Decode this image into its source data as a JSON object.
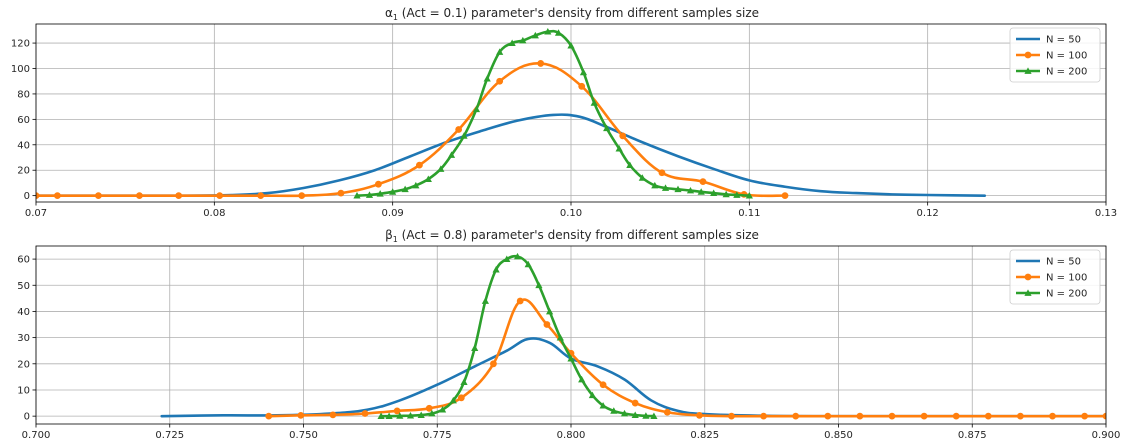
{
  "colors": {
    "n50": "#1f77b4",
    "n100": "#ff7f0e",
    "n200": "#2ca02c",
    "grid": "#b0b0b0",
    "axis": "#000000"
  },
  "chart_data": [
    {
      "type": "line",
      "title_prefix": "α",
      "title_sub": "1",
      "title_rest": " (Act = 0.1) parameter's density from different samples size",
      "xlim": [
        0.07,
        0.13
      ],
      "ylim": [
        -5,
        135
      ],
      "xticks": [
        0.07,
        0.08,
        0.09,
        0.1,
        0.11,
        0.12,
        0.13
      ],
      "xtick_labels": [
        "0.07",
        "0.08",
        "0.09",
        "0.10",
        "0.11",
        "0.12",
        "0.13"
      ],
      "yticks": [
        0,
        20,
        40,
        60,
        80,
        100,
        120
      ],
      "ytick_labels": [
        "0",
        "20",
        "40",
        "60",
        "80",
        "100",
        "120"
      ],
      "grid": true,
      "legend_position": "top-right",
      "legend": [
        "N = 50",
        "N = 100",
        "N = 200"
      ],
      "series": [
        {
          "name": "N = 50",
          "marker": "none",
          "color_key": "n50",
          "x": [
            0.07,
            0.078,
            0.081,
            0.083,
            0.085,
            0.087,
            0.089,
            0.091,
            0.093,
            0.095,
            0.097,
            0.099,
            0.1005,
            0.102,
            0.104,
            0.106,
            0.108,
            0.11,
            0.112,
            0.114,
            0.116,
            0.118,
            0.12,
            0.1232
          ],
          "y": [
            0,
            0,
            0.5,
            2,
            6,
            12,
            20,
            31,
            42,
            51,
            59,
            63.5,
            62,
            54,
            42,
            31,
            21,
            12,
            7,
            3.5,
            2,
            1,
            0.5,
            0
          ]
        },
        {
          "name": "N = 100",
          "marker": "circle",
          "color_key": "n100",
          "x": [
            0.07,
            0.0712,
            0.0735,
            0.0758,
            0.078,
            0.0803,
            0.0826,
            0.0849,
            0.0871,
            0.0892,
            0.0915,
            0.0937,
            0.096,
            0.0983,
            0.1006,
            0.1029,
            0.1051,
            0.1074,
            0.1097,
            0.112
          ],
          "y": [
            0,
            0,
            0,
            0,
            0,
            0,
            0,
            0,
            2,
            9,
            24,
            52,
            90,
            104,
            86,
            47,
            18,
            11,
            1,
            0
          ]
        },
        {
          "name": "N = 200",
          "marker": "triangle",
          "color_key": "n200",
          "x": [
            0.088,
            0.0887,
            0.0893,
            0.09,
            0.0907,
            0.0913,
            0.092,
            0.0927,
            0.0933,
            0.094,
            0.0947,
            0.0953,
            0.096,
            0.0967,
            0.0973,
            0.098,
            0.0987,
            0.0993,
            0.1,
            0.1007,
            0.1013,
            0.102,
            0.1027,
            0.1033,
            0.104,
            0.1047,
            0.1053,
            0.106,
            0.1067,
            0.1073,
            0.108,
            0.1087,
            0.1093,
            0.11
          ],
          "y": [
            0,
            0.5,
            1.5,
            3,
            5,
            8,
            13,
            21,
            32,
            47,
            68,
            92,
            113,
            120,
            122,
            126,
            129,
            128,
            118,
            97,
            73,
            53,
            37,
            24,
            14,
            8,
            6,
            5,
            4,
            3,
            2,
            1,
            0.5,
            0
          ]
        }
      ]
    },
    {
      "type": "line",
      "title_prefix": "β",
      "title_sub": "1",
      "title_rest": " (Act = 0.8) parameter's density from different samples size",
      "xlim": [
        0.7,
        0.9
      ],
      "ylim": [
        -3,
        65
      ],
      "xticks": [
        0.7,
        0.725,
        0.75,
        0.775,
        0.8,
        0.825,
        0.85,
        0.875,
        0.9
      ],
      "xtick_labels": [
        "0.700",
        "0.725",
        "0.750",
        "0.775",
        "0.800",
        "0.825",
        "0.850",
        "0.875",
        "0.900"
      ],
      "yticks": [
        0,
        10,
        20,
        30,
        40,
        50,
        60
      ],
      "ytick_labels": [
        "0",
        "10",
        "20",
        "30",
        "40",
        "50",
        "60"
      ],
      "grid": true,
      "legend_position": "top-right",
      "legend": [
        "N = 50",
        "N = 100",
        "N = 200"
      ],
      "series": [
        {
          "name": "N = 50",
          "marker": "none",
          "color_key": "n50",
          "x": [
            0.7235,
            0.735,
            0.745,
            0.755,
            0.762,
            0.768,
            0.775,
            0.782,
            0.788,
            0.792,
            0.796,
            0.8,
            0.805,
            0.81,
            0.815,
            0.82,
            0.825,
            0.835,
            0.85,
            0.9
          ],
          "y": [
            0,
            0.3,
            0.3,
            1,
            2.5,
            6,
            12,
            19,
            25,
            29.5,
            28,
            22,
            19,
            14,
            6,
            2,
            0.8,
            0.2,
            0,
            0
          ]
        },
        {
          "name": "N = 100",
          "marker": "circle",
          "color_key": "n100",
          "x": [
            0.7435,
            0.7495,
            0.7555,
            0.7615,
            0.7675,
            0.7735,
            0.7795,
            0.7855,
            0.7905,
            0.7955,
            0.8,
            0.806,
            0.812,
            0.818,
            0.824,
            0.83,
            0.836,
            0.842,
            0.848,
            0.854,
            0.86,
            0.866,
            0.872,
            0.878,
            0.884,
            0.89,
            0.896,
            0.9
          ],
          "y": [
            0,
            0.3,
            0.5,
            1,
            2,
            3,
            7,
            20,
            44,
            35,
            24,
            12,
            5,
            1.5,
            0.3,
            0,
            0,
            0,
            0,
            0,
            0,
            0,
            0,
            0,
            0,
            0,
            0,
            0
          ]
        },
        {
          "name": "N = 200",
          "marker": "triangle",
          "color_key": "n200",
          "x": [
            0.7645,
            0.766,
            0.768,
            0.77,
            0.772,
            0.774,
            0.776,
            0.778,
            0.78,
            0.782,
            0.784,
            0.786,
            0.788,
            0.79,
            0.792,
            0.794,
            0.796,
            0.798,
            0.8,
            0.802,
            0.804,
            0.806,
            0.808,
            0.81,
            0.812,
            0.814,
            0.8155
          ],
          "y": [
            0,
            0,
            0.1,
            0.2,
            0.4,
            1,
            2.5,
            6,
            13,
            26,
            44,
            56,
            60,
            61,
            58,
            50,
            40,
            30,
            22,
            14,
            8,
            4,
            2,
            1,
            0.4,
            0.1,
            0
          ]
        }
      ]
    }
  ]
}
